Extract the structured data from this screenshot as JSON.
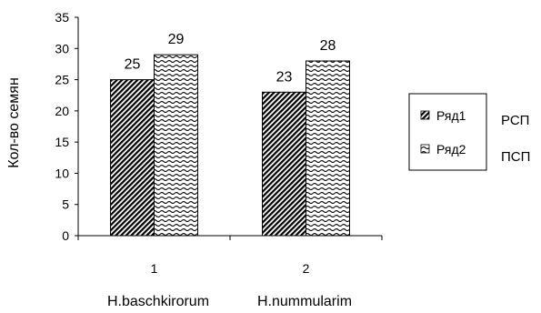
{
  "chart_data": {
    "type": "bar",
    "categories": [
      "1",
      "2"
    ],
    "category_names": [
      "H.baschkirorum",
      "H.nummularim"
    ],
    "series": [
      {
        "name": "Ряд1",
        "values": [
          25,
          23
        ],
        "side_label": "РСП",
        "pattern": "diagonal-dense"
      },
      {
        "name": "Ряд2",
        "values": [
          29,
          28
        ],
        "side_label": "ПСП",
        "pattern": "wave"
      }
    ],
    "ylabel": "Кол-во семян",
    "xlabel": "",
    "ylim": [
      0,
      35
    ],
    "yticks": [
      0,
      5,
      10,
      15,
      20,
      25,
      30,
      35
    ],
    "grid": false,
    "legend_position": "right"
  }
}
